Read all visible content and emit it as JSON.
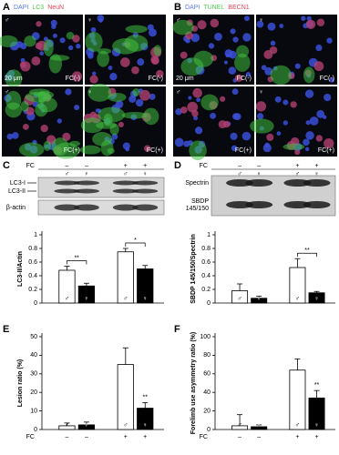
{
  "panels": [
    {
      "label": "A",
      "legend": [
        {
          "text": "DAPI",
          "color": "#5b7bff"
        },
        {
          "text": "LC3",
          "color": "#4fd04f"
        },
        {
          "text": "NeuN",
          "color": "#e0455a"
        }
      ],
      "scale": "20 μm",
      "images": [
        {
          "sex": "♂",
          "condition": "FC(-)"
        },
        {
          "sex": "♀",
          "condition": "FC(-)"
        },
        {
          "sex": "♂",
          "condition": "FC(+)"
        },
        {
          "sex": "♀",
          "condition": "FC(+)"
        }
      ]
    },
    {
      "label": "B",
      "legend": [
        {
          "text": "DAPI",
          "color": "#5b7bff"
        },
        {
          "text": "TUNEL",
          "color": "#4fd04f"
        },
        {
          "text": "BECN1",
          "color": "#e0455a"
        }
      ],
      "scale": "20 μm",
      "images": [
        {
          "sex": "♂",
          "condition": "FC(-)"
        },
        {
          "sex": "♀",
          "condition": "FC(-)"
        },
        {
          "sex": "♂",
          "condition": "FC(+)"
        },
        {
          "sex": "♀",
          "condition": "FC(+)"
        }
      ]
    }
  ],
  "blots": [
    {
      "bands": [
        "LC3-I",
        "LC3-II",
        "β-actin"
      ]
    },
    {
      "bands": [
        "Spectrin",
        "SBDP\n145/150"
      ]
    }
  ],
  "chart_data": [
    {
      "type": "bar",
      "panel_label": "C",
      "x_label": "FC",
      "y_label": "LC3-II/Actin",
      "categories": [
        "–",
        "–",
        "+",
        "+"
      ],
      "sex": [
        "♂",
        "♀",
        "♂",
        "♀"
      ],
      "values": [
        0.48,
        0.25,
        0.75,
        0.5
      ],
      "errors": [
        0.06,
        0.04,
        0.05,
        0.05
      ],
      "colors": [
        "#ffffff",
        "#000000",
        "#ffffff",
        "#000000"
      ],
      "ylim": [
        0,
        1
      ],
      "yticks": [
        0,
        0.2,
        0.4,
        0.6,
        0.8,
        1
      ],
      "annotations": [
        {
          "text": "**"
        },
        {
          "text": "*"
        }
      ]
    },
    {
      "type": "bar",
      "panel_label": "D",
      "x_label": "FC",
      "y_label": "SBDP 145/150/Spectrin",
      "categories": [
        "–",
        "–",
        "+",
        "+"
      ],
      "sex": [
        "♂",
        "♀",
        "♂",
        "♀"
      ],
      "values": [
        0.18,
        0.07,
        0.52,
        0.15
      ],
      "errors": [
        0.1,
        0.03,
        0.13,
        0.02
      ],
      "colors": [
        "#ffffff",
        "#000000",
        "#ffffff",
        "#000000"
      ],
      "ylim": [
        0,
        1
      ],
      "yticks": [
        0,
        0.2,
        0.4,
        0.6,
        0.8,
        1
      ],
      "annotations": [
        {
          "text": "**"
        }
      ]
    },
    {
      "type": "bar",
      "panel_label": "E",
      "x_label": "FC",
      "y_label": "Lesion ratio (%)",
      "categories": [
        "–",
        "–",
        "+",
        "+"
      ],
      "sex": [
        "♂",
        "♀",
        "♂",
        "♀"
      ],
      "values": [
        2,
        2.5,
        35,
        11.5
      ],
      "errors": [
        1.5,
        1.5,
        9,
        3
      ],
      "colors": [
        "#ffffff",
        "#000000",
        "#ffffff",
        "#000000"
      ],
      "ylim": [
        0,
        50
      ],
      "yticks": [
        0,
        10,
        20,
        30,
        40,
        50
      ],
      "annotations": [
        {
          "text": "**"
        }
      ]
    },
    {
      "type": "bar",
      "panel_label": "F",
      "x_label": "FC",
      "y_label": "Forelimb use asymmetry ratio (%)",
      "categories": [
        "–",
        "–",
        "+",
        "+"
      ],
      "sex": [
        "♂",
        "♀",
        "♂",
        "♀"
      ],
      "values": [
        4,
        3,
        64,
        34
      ],
      "errors": [
        12,
        2,
        12,
        8
      ],
      "colors": [
        "#ffffff",
        "#000000",
        "#ffffff",
        "#000000"
      ],
      "ylim": [
        0,
        100
      ],
      "yticks": [
        0,
        20,
        40,
        60,
        80,
        100
      ],
      "annotations": [
        {
          "text": "**"
        }
      ]
    }
  ]
}
